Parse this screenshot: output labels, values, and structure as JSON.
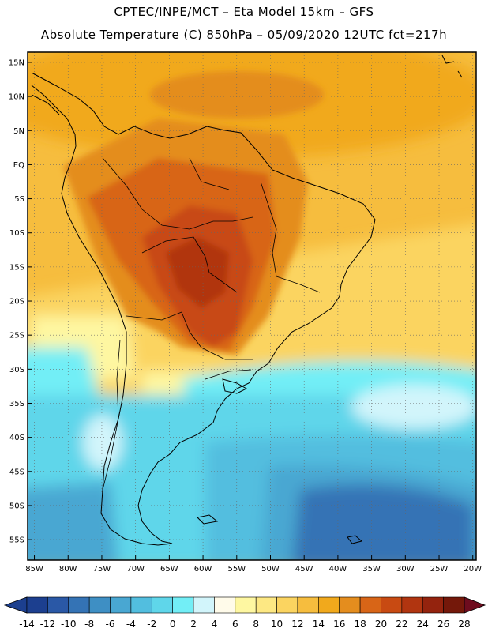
{
  "header": {
    "line1": "CPTEC/INPE/MCT –   Eta Model 15km – GFS",
    "line2": "Absolute Temperature (C) 850hPa – 05/09/2020 12UTC fct=217h"
  },
  "axes": {
    "lat_ticks": [
      {
        "label": "15N",
        "lat": 15
      },
      {
        "label": "10N",
        "lat": 10
      },
      {
        "label": "5N",
        "lat": 5
      },
      {
        "label": "EQ",
        "lat": 0
      },
      {
        "label": "5S",
        "lat": -5
      },
      {
        "label": "10S",
        "lat": -10
      },
      {
        "label": "15S",
        "lat": -15
      },
      {
        "label": "20S",
        "lat": -20
      },
      {
        "label": "25S",
        "lat": -25
      },
      {
        "label": "30S",
        "lat": -30
      },
      {
        "label": "35S",
        "lat": -35
      },
      {
        "label": "40S",
        "lat": -40
      },
      {
        "label": "45S",
        "lat": -45
      },
      {
        "label": "50S",
        "lat": -50
      },
      {
        "label": "55S",
        "lat": -55
      }
    ],
    "lon_ticks": [
      {
        "label": "85W",
        "lon": -85
      },
      {
        "label": "80W",
        "lon": -80
      },
      {
        "label": "75W",
        "lon": -75
      },
      {
        "label": "70W",
        "lon": -70
      },
      {
        "label": "65W",
        "lon": -65
      },
      {
        "label": "60W",
        "lon": -60
      },
      {
        "label": "55W",
        "lon": -55
      },
      {
        "label": "50W",
        "lon": -50
      },
      {
        "label": "45W",
        "lon": -45
      },
      {
        "label": "40W",
        "lon": -40
      },
      {
        "label": "35W",
        "lon": -35
      },
      {
        "label": "30W",
        "lon": -30
      },
      {
        "label": "25W",
        "lon": -25
      },
      {
        "label": "20W",
        "lon": -20
      }
    ]
  },
  "colorbar": {
    "colors": [
      "#1c3f8f",
      "#2a58a6",
      "#3473b5",
      "#3e8fc4",
      "#49a7d2",
      "#52bedf",
      "#5fd6ea",
      "#72eef6",
      "#d2f5fb",
      "#fffbea",
      "#fef7a1",
      "#fde883",
      "#fbd460",
      "#f6bd3e",
      "#f1a91c",
      "#e48d1e",
      "#d86517",
      "#c84a12",
      "#b13510",
      "#94230e",
      "#74180a"
    ],
    "low_color": "#1c3f8f",
    "high_color": "#6e0c1e",
    "labels": [
      "-14",
      "-12",
      "-10",
      "-8",
      "-6",
      "-4",
      "-2",
      "0",
      "2",
      "4",
      "6",
      "8",
      "10",
      "12",
      "14",
      "16",
      "18",
      "20",
      "22",
      "24",
      "26",
      "28"
    ]
  }
}
